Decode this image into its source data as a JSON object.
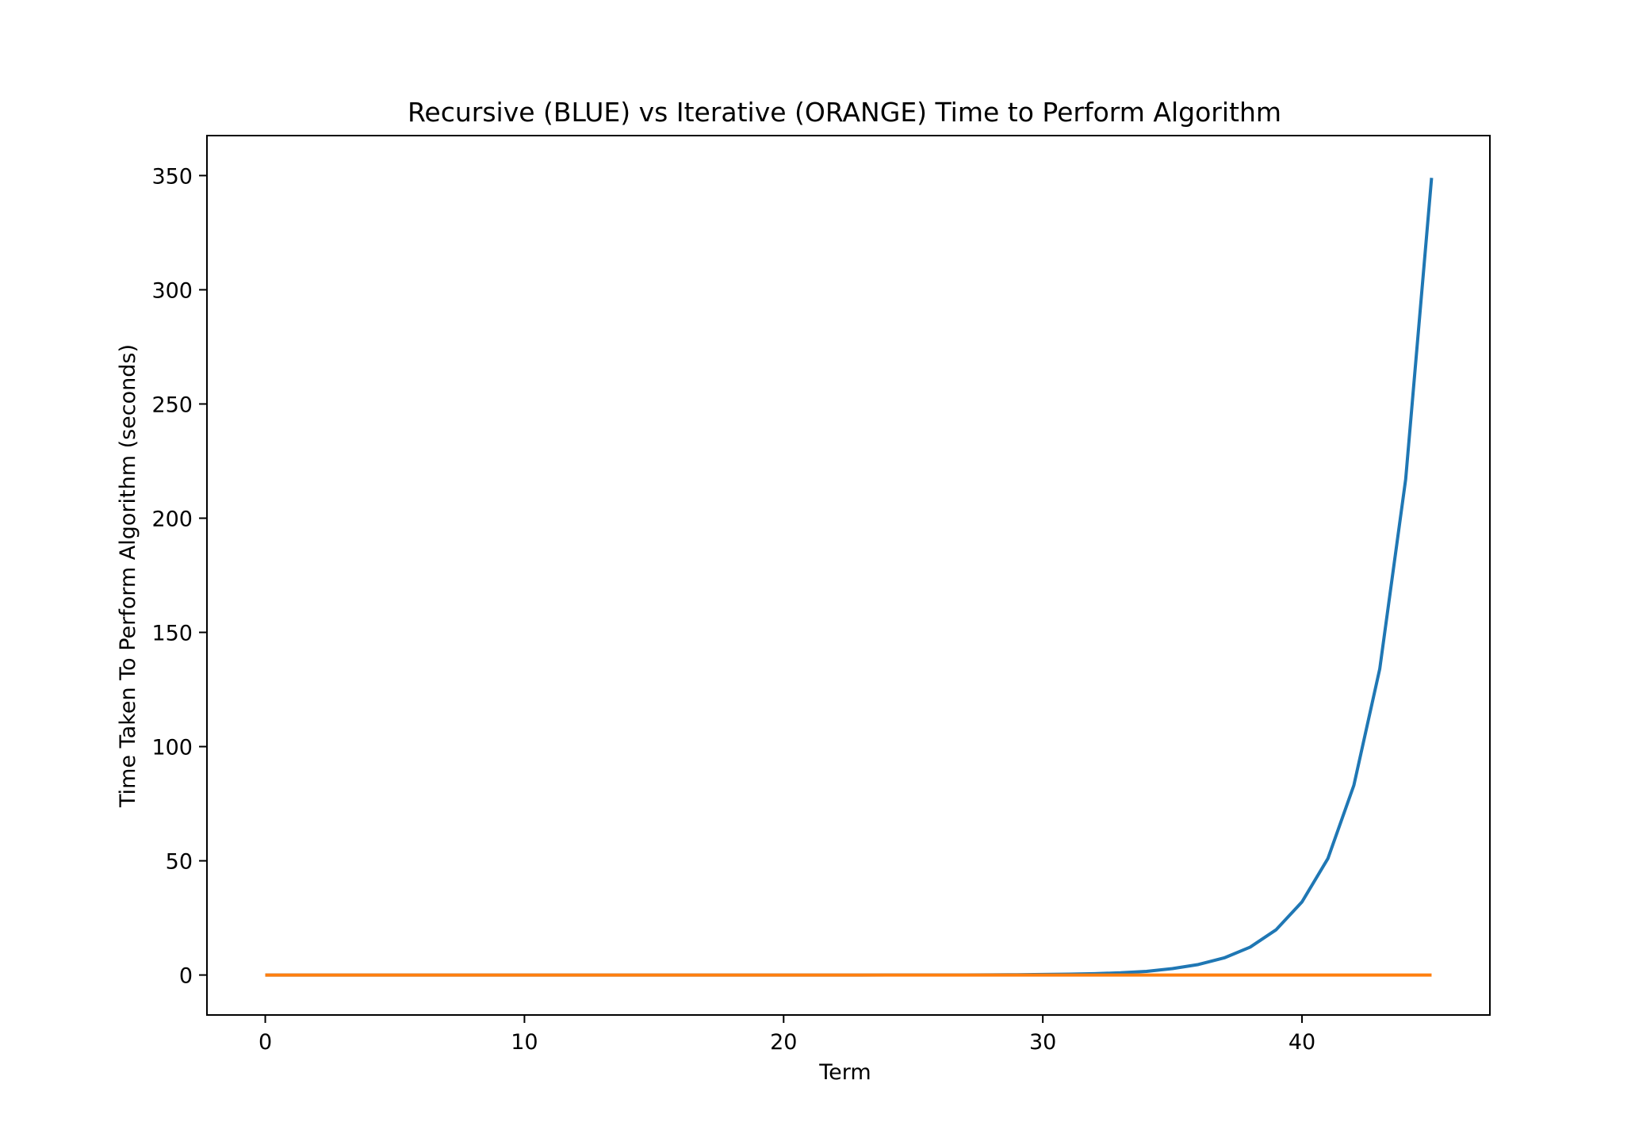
{
  "chart_data": {
    "type": "line",
    "title": "Recursive (BLUE) vs Iterative (ORANGE) Time to Perform Algorithm",
    "xlabel": "Term",
    "ylabel": "Time Taken To Perform Algorithm (seconds)",
    "xlim": [
      -2.25,
      47.25
    ],
    "ylim": [
      -17.5,
      367.5
    ],
    "xticks": [
      0,
      10,
      20,
      30,
      40
    ],
    "yticks": [
      0,
      50,
      100,
      150,
      200,
      250,
      300,
      350
    ],
    "grid": false,
    "legend": "none",
    "x": [
      0,
      1,
      2,
      3,
      4,
      5,
      6,
      7,
      8,
      9,
      10,
      11,
      12,
      13,
      14,
      15,
      16,
      17,
      18,
      19,
      20,
      21,
      22,
      23,
      24,
      25,
      26,
      27,
      28,
      29,
      30,
      31,
      32,
      33,
      34,
      35,
      36,
      37,
      38,
      39,
      40,
      41,
      42,
      43,
      44,
      45
    ],
    "series": [
      {
        "color": "#1f77b4",
        "values": [
          0,
          0,
          0,
          0,
          0,
          0,
          0,
          0,
          0,
          0,
          0,
          0,
          0,
          0,
          0,
          0,
          0,
          0,
          0,
          0,
          0,
          0,
          0,
          0,
          0.01,
          0.02,
          0.03,
          0.05,
          0.09,
          0.14,
          0.23,
          0.37,
          0.6,
          0.97,
          1.6,
          2.8,
          4.6,
          7.5,
          12.2,
          19.8,
          32,
          51,
          83,
          134,
          217,
          349
        ]
      },
      {
        "color": "#ff7f0e",
        "values": [
          0,
          0,
          0,
          0,
          0,
          0,
          0,
          0,
          0,
          0,
          0,
          0,
          0,
          0,
          0,
          0,
          0,
          0,
          0,
          0,
          0,
          0,
          0,
          0,
          0,
          0,
          0,
          0,
          0,
          0,
          0,
          0,
          0,
          0,
          0,
          0,
          0,
          0,
          0,
          0,
          0,
          0,
          0,
          0,
          0,
          0
        ]
      }
    ]
  }
}
